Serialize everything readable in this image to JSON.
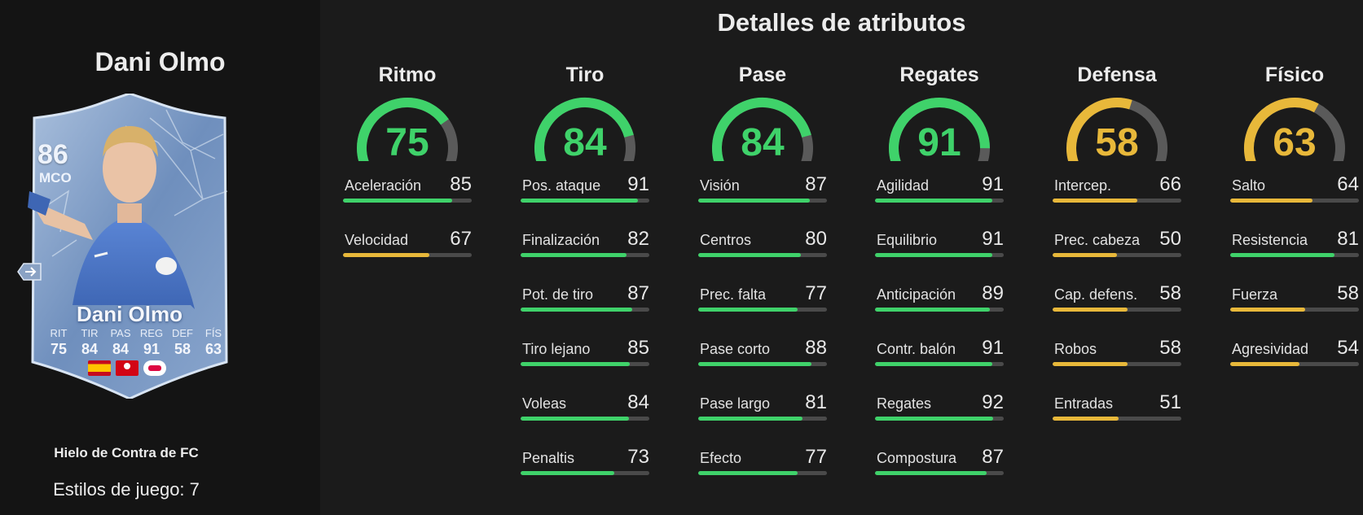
{
  "player": {
    "name": "Dani Olmo",
    "card_name": "Dani Olmo",
    "rating": "86",
    "position": "MCO",
    "card_version": "Hielo de Contra de FC",
    "playstyles": "Estilos de juego: 7",
    "card_stats": [
      {
        "label": "RIT",
        "value": "75"
      },
      {
        "label": "TIR",
        "value": "84"
      },
      {
        "label": "PAS",
        "value": "84"
      },
      {
        "label": "REG",
        "value": "91"
      },
      {
        "label": "DEF",
        "value": "58"
      },
      {
        "label": "FÍS",
        "value": "63"
      }
    ],
    "badges": [
      "spain-flag-icon",
      "bundesliga-logo-icon",
      "rb-leipzig-crest-icon"
    ]
  },
  "title": "Detalles de atributos",
  "colors": {
    "green": "#3fd26a",
    "yellow": "#e8b83a",
    "red": "#e0323f",
    "track": "#4a4a4a"
  },
  "categories": [
    {
      "name": "Ritmo",
      "value": 75,
      "stats": [
        {
          "label": "Aceleración",
          "value": 85
        },
        {
          "label": "Velocidad",
          "value": 67
        }
      ]
    },
    {
      "name": "Tiro",
      "value": 84,
      "stats": [
        {
          "label": "Pos. ataque",
          "value": 91
        },
        {
          "label": "Finalización",
          "value": 82
        },
        {
          "label": "Pot. de tiro",
          "value": 87
        },
        {
          "label": "Tiro lejano",
          "value": 85
        },
        {
          "label": "Voleas",
          "value": 84
        },
        {
          "label": "Penaltis",
          "value": 73
        }
      ]
    },
    {
      "name": "Pase",
      "value": 84,
      "stats": [
        {
          "label": "Visión",
          "value": 87
        },
        {
          "label": "Centros",
          "value": 80
        },
        {
          "label": "Prec. falta",
          "value": 77
        },
        {
          "label": "Pase corto",
          "value": 88
        },
        {
          "label": "Pase largo",
          "value": 81
        },
        {
          "label": "Efecto",
          "value": 77
        }
      ]
    },
    {
      "name": "Regates",
      "value": 91,
      "stats": [
        {
          "label": "Agilidad",
          "value": 91
        },
        {
          "label": "Equilibrio",
          "value": 91
        },
        {
          "label": "Anticipación",
          "value": 89
        },
        {
          "label": "Contr. balón",
          "value": 91
        },
        {
          "label": "Regates",
          "value": 92
        },
        {
          "label": "Compostura",
          "value": 87
        }
      ]
    },
    {
      "name": "Defensa",
      "value": 58,
      "stats": [
        {
          "label": "Intercep.",
          "value": 66
        },
        {
          "label": "Prec. cabeza",
          "value": 50
        },
        {
          "label": "Cap. defens.",
          "value": 58
        },
        {
          "label": "Robos",
          "value": 58
        },
        {
          "label": "Entradas",
          "value": 51
        }
      ]
    },
    {
      "name": "Físico",
      "value": 63,
      "stats": [
        {
          "label": "Salto",
          "value": 64
        },
        {
          "label": "Resistencia",
          "value": 81
        },
        {
          "label": "Fuerza",
          "value": 58
        },
        {
          "label": "Agresividad",
          "value": 54
        }
      ]
    }
  ]
}
